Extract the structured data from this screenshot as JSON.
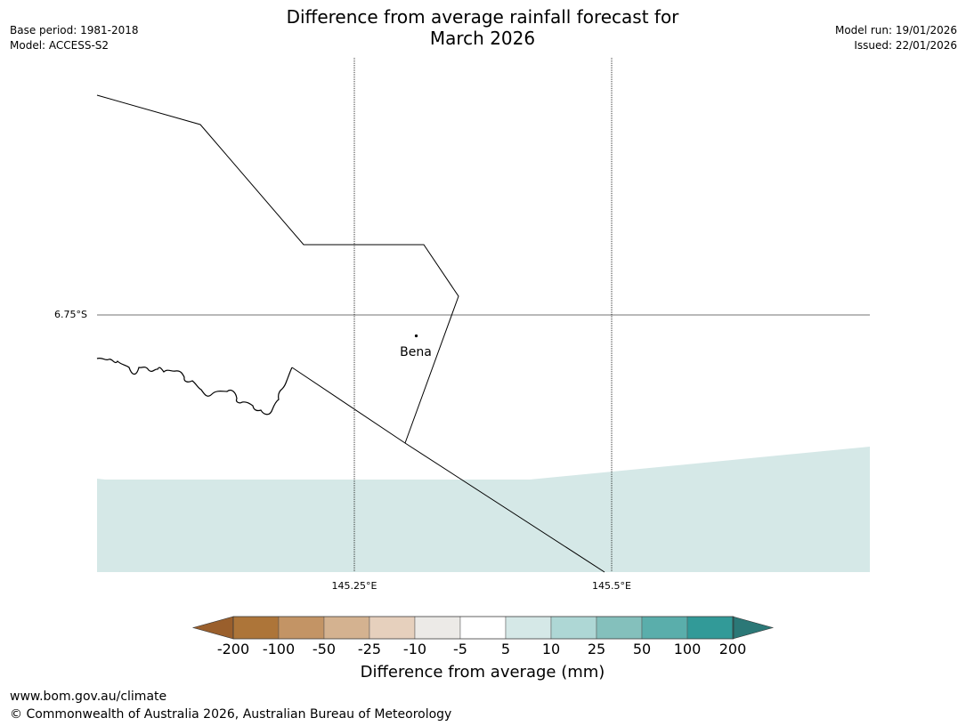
{
  "header": {
    "title_line1": "Difference from average rainfall forecast for",
    "title_line2": "March 2026",
    "base_period": "Base period: 1981-2018",
    "model": "Model: ACCESS-S2",
    "model_run": "Model run: 19/01/2026",
    "issued": "Issued: 22/01/2026"
  },
  "map": {
    "lat_label": "6.75°S",
    "lon_labels": [
      "145.25°E",
      "145.5°E"
    ],
    "place_name": "Bena",
    "shaded_category": "5 to 10",
    "shade_color": "#d5e8e7"
  },
  "colorbar": {
    "label": "Difference from average (mm)",
    "ticks": [
      "-200",
      "-100",
      "-50",
      "-25",
      "-10",
      "-5",
      "5",
      "10",
      "25",
      "50",
      "100",
      "200"
    ],
    "colors": [
      "#9a5f2c",
      "#ad7539",
      "#c39465",
      "#d4b290",
      "#e6d0bd",
      "#eceae7",
      "#ffffff",
      "#d5e8e7",
      "#aed7d5",
      "#84c0bc",
      "#5aaeab",
      "#329a98",
      "#2b7877"
    ]
  },
  "footer": {
    "url": "www.bom.gov.au/climate",
    "copyright": "© Commonwealth of Australia 2026, Australian Bureau of Meteorology"
  }
}
